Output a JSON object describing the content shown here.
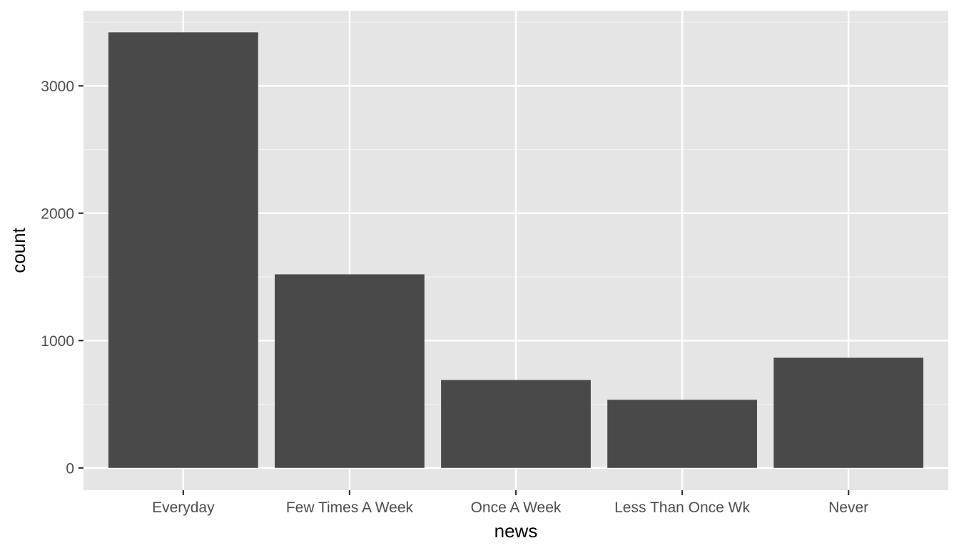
{
  "chart_data": {
    "type": "bar",
    "categories": [
      "Everyday",
      "Few Times A Week",
      "Once A Week",
      "Less Than Once Wk",
      "Never"
    ],
    "values": [
      3420,
      1520,
      690,
      535,
      865
    ],
    "xlabel": "news",
    "ylabel": "count",
    "ylim": [
      -175,
      3590
    ],
    "yticks": [
      0,
      1000,
      2000,
      3000
    ],
    "grid": true,
    "colors": {
      "panel_bg": "#e5e5e5",
      "grid_major": "#ffffff",
      "grid_minor": "#f2f2f2",
      "bar_fill": "#494949",
      "tick_color": "#333333"
    }
  }
}
